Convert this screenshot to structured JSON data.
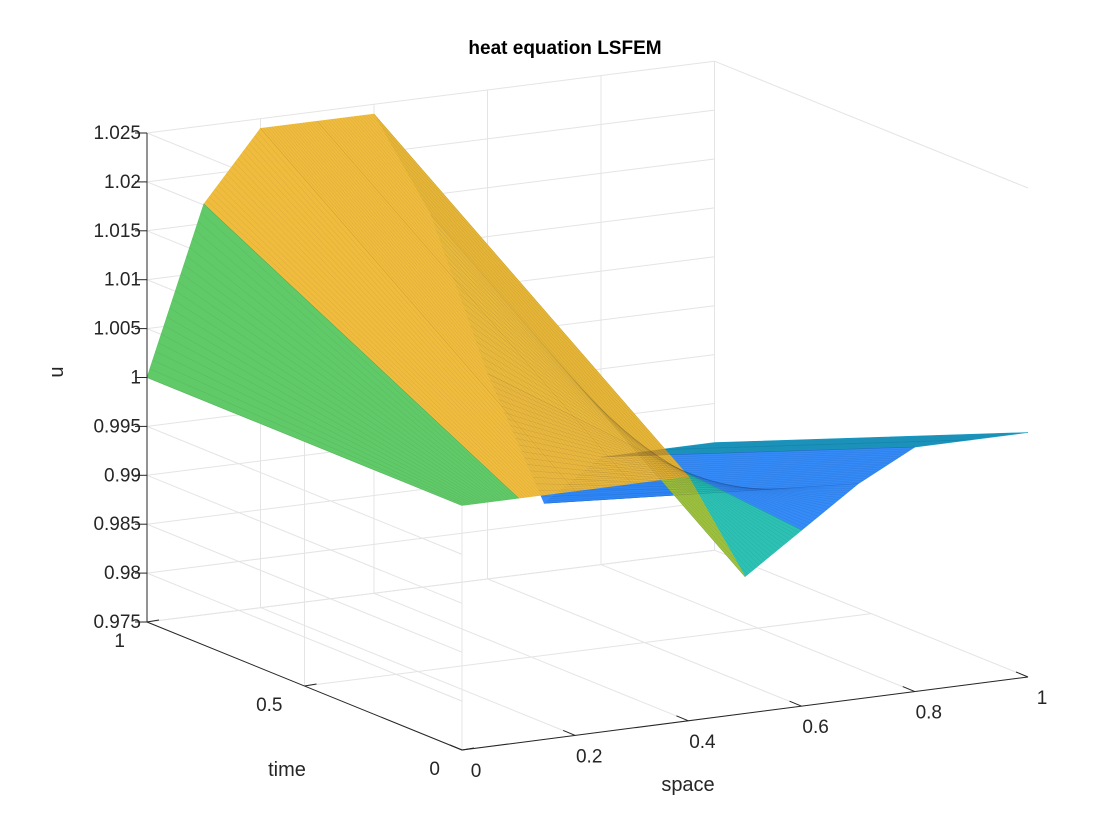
{
  "chart_data": {
    "type": "surface",
    "title": "heat equation LSFEM",
    "xlabel": "space",
    "ylabel": "time",
    "zlabel": "u",
    "xlim": [
      0,
      1
    ],
    "ylim": [
      0,
      1
    ],
    "zlim": [
      0.975,
      1.025
    ],
    "xticks": [
      "0",
      "0.2",
      "0.4",
      "0.6",
      "0.8",
      "1"
    ],
    "yticks": [
      "0",
      "0.5",
      "1"
    ],
    "zticks": [
      "0.975",
      "0.98",
      "0.985",
      "0.99",
      "0.995",
      "1",
      "1.005",
      "1.01",
      "1.015",
      "1.02",
      "1.025"
    ],
    "grid": "on",
    "colormap": "parula",
    "space": [
      0,
      0.1,
      0.2,
      0.3,
      0.4,
      0.5,
      0.6,
      0.7,
      0.8,
      0.9,
      1.0
    ],
    "time": [
      0,
      1
    ],
    "u": {
      "time_0": [
        1.0,
        1.0,
        1.0,
        1.0,
        1.0,
        0.989,
        0.993,
        0.997,
        1.0,
        1.0,
        1.0
      ],
      "time_1": [
        1.0,
        1.017,
        1.024,
        1.024,
        1.024,
        1.013,
        0.996,
        0.982,
        0.986,
        0.986,
        0.986
      ]
    },
    "palette": [
      "#3e26a8",
      "#4353f1",
      "#2e87f7",
      "#1caed9",
      "#26bfb1",
      "#5cc863",
      "#a6c63b",
      "#f0ba38",
      "#fcd42b",
      "#f9fb0e"
    ]
  }
}
